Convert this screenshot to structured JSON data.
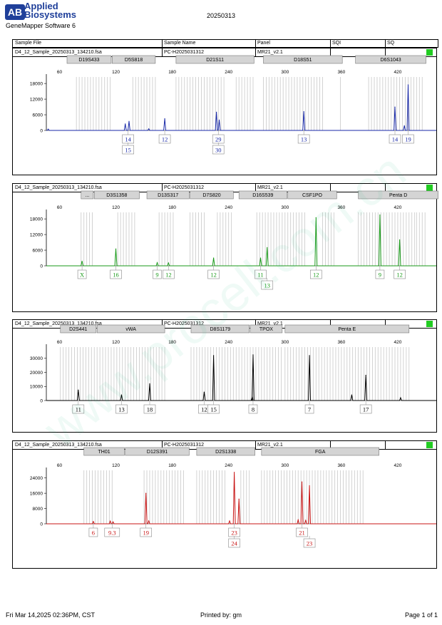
{
  "header": {
    "logo_letters": "AB",
    "brand_line1": "Applied",
    "brand_line2": "Biosystems",
    "software": "GeneMapper Software 6",
    "date": "20250313",
    "columns": [
      "Sample File",
      "Sample Name",
      "Panel",
      "SQI",
      "SQ"
    ]
  },
  "footer": {
    "datetime": "Fri Mar 14,2025 02:36PM, CST",
    "printed_by": "Printed by: gm",
    "page": "Page 1 of 1"
  },
  "watermark": "www.procell.com.cn",
  "chart_data": [
    {
      "type": "electropherogram",
      "sample_file": "D4_12_Sample_20250313_134210.fsa",
      "sample_name": "PC-H2025031312",
      "panel": "MR21_v2.1",
      "color": "#1a2aa8",
      "xlim": [
        46,
        461
      ],
      "x_ticks": [
        60,
        120,
        180,
        240,
        300,
        360,
        420
      ],
      "ylim": [
        0,
        20500
      ],
      "y_ticks": [
        0,
        6000,
        12000,
        18000
      ],
      "markers": [
        {
          "name": "D19S433",
          "x0": 68,
          "x1": 115
        },
        {
          "name": "D5S818",
          "x0": 116,
          "x1": 162
        },
        {
          "name": "D21S11",
          "x0": 184,
          "x1": 267
        },
        {
          "name": "D18S51",
          "x0": 277,
          "x1": 361
        },
        {
          "name": "D6S1043",
          "x0": 375,
          "x1": 450
        }
      ],
      "bins": [
        [
          78,
          115
        ],
        [
          138,
          162
        ],
        [
          184,
          236
        ],
        [
          248,
          267
        ],
        [
          277,
          342
        ],
        [
          359,
          361
        ],
        [
          389,
          446
        ]
      ],
      "peaks": [
        [
          48,
          500
        ],
        [
          130,
          2500
        ],
        [
          134,
          3500
        ],
        [
          155,
          600
        ],
        [
          172,
          4500
        ],
        [
          227,
          7000
        ],
        [
          230,
          4000
        ],
        [
          320,
          7200
        ],
        [
          417,
          9000
        ],
        [
          427,
          1800
        ],
        [
          431,
          17500
        ]
      ],
      "alleles": [
        {
          "x": 133,
          "labels": [
            "14",
            "15"
          ]
        },
        {
          "x": 172,
          "labels": [
            "12"
          ]
        },
        {
          "x": 229,
          "labels": [
            "29",
            "30"
          ]
        },
        {
          "x": 320,
          "labels": [
            "13"
          ]
        },
        {
          "x": 417,
          "labels": [
            "14"
          ]
        },
        {
          "x": 431,
          "labels": [
            "19"
          ]
        }
      ]
    },
    {
      "type": "electropherogram",
      "sample_file": "D4_12_Sample_20250313_134210.fsa",
      "sample_name": "PC-H2025031312",
      "panel": "MR21_v2.1",
      "color": "#1a9a1a",
      "xlim": [
        46,
        461
      ],
      "x_ticks": [
        60,
        120,
        180,
        240,
        300,
        360,
        420
      ],
      "ylim": [
        0,
        20500
      ],
      "y_ticks": [
        0,
        6000,
        12000,
        18000
      ],
      "markers": [
        {
          "name": "...",
          "x0": 83,
          "x1": 96
        },
        {
          "name": "D3S1358",
          "x0": 97,
          "x1": 145
        },
        {
          "name": "D13S317",
          "x0": 153,
          "x1": 198
        },
        {
          "name": "D7S820",
          "x0": 199,
          "x1": 245
        },
        {
          "name": "D16S539",
          "x0": 251,
          "x1": 302
        },
        {
          "name": "CSF1PO",
          "x0": 303,
          "x1": 355
        },
        {
          "name": "Penta D",
          "x0": 378,
          "x1": 463
        }
      ],
      "bins": [
        [
          83,
          96
        ],
        [
          122,
          142
        ],
        [
          166,
          182
        ],
        [
          199,
          216
        ],
        [
          228,
          243
        ],
        [
          270,
          302
        ],
        [
          303,
          323
        ],
        [
          340,
          352
        ],
        [
          378,
          438
        ],
        [
          440,
          450
        ]
      ],
      "peaks": [
        [
          84,
          1800
        ],
        [
          120,
          6500
        ],
        [
          164,
          1200
        ],
        [
          176,
          1100
        ],
        [
          224,
          3000
        ],
        [
          274,
          3000
        ],
        [
          281,
          7000
        ],
        [
          333,
          18500
        ],
        [
          401,
          19500
        ],
        [
          422,
          10000
        ]
      ],
      "alleles": [
        {
          "x": 84,
          "labels": [
            "X"
          ]
        },
        {
          "x": 120,
          "labels": [
            "16"
          ]
        },
        {
          "x": 164,
          "labels": [
            "9"
          ]
        },
        {
          "x": 176,
          "labels": [
            "12"
          ]
        },
        {
          "x": 224,
          "labels": [
            "12"
          ]
        },
        {
          "x": 274,
          "labels": [
            "11"
          ]
        },
        {
          "x": 281,
          "labels": [
            "",
            "13"
          ]
        },
        {
          "x": 333,
          "labels": [
            "12"
          ]
        },
        {
          "x": 401,
          "labels": [
            "9"
          ]
        },
        {
          "x": 422,
          "labels": [
            "12"
          ]
        }
      ]
    },
    {
      "type": "electropherogram",
      "sample_file": "D4_12_Sample_20250313_134210.fsa",
      "sample_name": "PC-H2025031312",
      "panel": "MR21_v2.1",
      "color": "#000000",
      "xlim": [
        46,
        461
      ],
      "x_ticks": [
        60,
        120,
        180,
        240,
        300,
        360,
        420
      ],
      "ylim": [
        0,
        38000
      ],
      "y_ticks": [
        0,
        10000,
        20000,
        30000
      ],
      "markers": [
        {
          "name": "D2S441",
          "x0": 61,
          "x1": 99
        },
        {
          "name": "vWA",
          "x0": 100,
          "x1": 172
        },
        {
          "name": "D8S1179",
          "x0": 200,
          "x1": 262
        },
        {
          "name": "TPOX",
          "x0": 263,
          "x1": 297
        },
        {
          "name": "Penta E",
          "x0": 300,
          "x1": 432
        }
      ],
      "bins": [
        [
          61,
          98
        ],
        [
          100,
          172
        ],
        [
          200,
          262
        ],
        [
          263,
          297
        ],
        [
          300,
          432
        ]
      ],
      "peaks": [
        [
          80,
          7500
        ],
        [
          126,
          4000
        ],
        [
          156,
          12000
        ],
        [
          214,
          6000
        ],
        [
          224,
          32000
        ],
        [
          265,
          2500
        ],
        [
          266,
          32500
        ],
        [
          326,
          32000
        ],
        [
          371,
          4000
        ],
        [
          386,
          18000
        ],
        [
          423,
          2000
        ]
      ],
      "alleles": [
        {
          "x": 80,
          "labels": [
            "11"
          ]
        },
        {
          "x": 126,
          "labels": [
            "13"
          ]
        },
        {
          "x": 156,
          "labels": [
            "18"
          ]
        },
        {
          "x": 214,
          "labels": [
            "12"
          ]
        },
        {
          "x": 224,
          "labels": [
            "15"
          ]
        },
        {
          "x": 266,
          "labels": [
            "8"
          ]
        },
        {
          "x": 326,
          "labels": [
            "7"
          ]
        },
        {
          "x": 386,
          "labels": [
            "17"
          ]
        }
      ]
    },
    {
      "type": "electropherogram",
      "sample_file": "D4_12_Sample_20250313_134210.fsa",
      "sample_name": "PC-H2025031312",
      "panel": "MR21_v2.1",
      "color": "#c81414",
      "xlim": [
        46,
        461
      ],
      "x_ticks": [
        60,
        120,
        180,
        240,
        300,
        360,
        420
      ],
      "ylim": [
        0,
        28000
      ],
      "y_ticks": [
        0,
        8000,
        16000,
        24000
      ],
      "markers": [
        {
          "name": "TH01",
          "x0": 86,
          "x1": 129
        },
        {
          "name": "D12S391",
          "x0": 130,
          "x1": 198
        },
        {
          "name": "D2S1338",
          "x0": 206,
          "x1": 268
        },
        {
          "name": "FGA",
          "x0": 275,
          "x1": 400
        }
      ],
      "bins": [
        [
          86,
          117
        ],
        [
          150,
          192
        ],
        [
          206,
          238
        ],
        [
          253,
          262
        ],
        [
          275,
          383
        ]
      ],
      "peaks": [
        [
          96,
          1200
        ],
        [
          114,
          1400
        ],
        [
          117,
          1000
        ],
        [
          152,
          16000
        ],
        [
          155,
          1500
        ],
        [
          241,
          1500
        ],
        [
          246,
          27000
        ],
        [
          251,
          13000
        ],
        [
          314,
          2000
        ],
        [
          318,
          22000
        ],
        [
          322,
          1800
        ],
        [
          326,
          20000
        ]
      ],
      "alleles": [
        {
          "x": 96,
          "labels": [
            "6"
          ]
        },
        {
          "x": 116,
          "labels": [
            "9.3"
          ]
        },
        {
          "x": 152,
          "labels": [
            "19"
          ]
        },
        {
          "x": 246,
          "labels": [
            "23",
            "24"
          ]
        },
        {
          "x": 318,
          "labels": [
            "21"
          ]
        },
        {
          "x": 326,
          "labels": [
            "",
            "23"
          ]
        }
      ]
    }
  ]
}
